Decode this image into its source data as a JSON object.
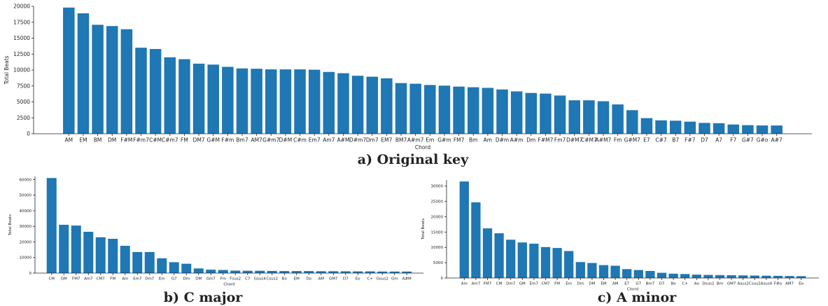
{
  "chart_data": [
    {
      "type": "bar",
      "caption": "a) Original key",
      "xlabel": "Chord",
      "ylabel": "Total Beats",
      "ylim": [
        0,
        20000
      ],
      "yticks": [
        0,
        2500,
        5000,
        7500,
        10000,
        12500,
        15000,
        17500,
        20000
      ],
      "color": "#1f77b4",
      "categories": [
        "AM",
        "EM",
        "BM",
        "DM",
        "F#M",
        "F#m7",
        "C#M",
        "C#m7",
        "FM",
        "DM7",
        "G#M",
        "F#m",
        "Bm7",
        "AM7",
        "G#m7",
        "D#M",
        "C#m",
        "Em7",
        "Am7",
        "A#M",
        "D#m7",
        "Dm7",
        "EM7",
        "BM7",
        "A#m7",
        "Em",
        "G#m",
        "FM7",
        "Bm",
        "Am",
        "D#m",
        "A#m",
        "Dm",
        "F#M7",
        "Fm7",
        "D#M7",
        "C#M7",
        "A#M7",
        "Fm",
        "G#M7",
        "E7",
        "C#7",
        "B7",
        "F#7",
        "D7",
        "A7",
        "F7",
        "G#7",
        "G#o",
        "A#7"
      ],
      "values": [
        19800,
        18900,
        17100,
        16900,
        16400,
        13500,
        13300,
        12000,
        11700,
        11000,
        10850,
        10500,
        10250,
        10200,
        10100,
        10100,
        10100,
        10050,
        9700,
        9500,
        9100,
        8950,
        8700,
        7950,
        7850,
        7650,
        7550,
        7400,
        7300,
        7200,
        6950,
        6650,
        6400,
        6300,
        6000,
        5250,
        5250,
        5100,
        4600,
        3700,
        2450,
        2100,
        2050,
        1900,
        1700,
        1650,
        1450,
        1350,
        1300,
        1300
      ]
    },
    {
      "type": "bar",
      "caption": "b) C major",
      "xlabel": "Chord",
      "ylabel": "Total Beats",
      "ylim": [
        0,
        62000
      ],
      "yticks": [
        0,
        10000,
        20000,
        30000,
        40000,
        50000,
        60000
      ],
      "color": "#1f77b4",
      "categories": [
        "CM",
        "GM",
        "FM7",
        "Am7",
        "CM7",
        "FM",
        "Am",
        "Em7",
        "Dm7",
        "Em",
        "G7",
        "Dm",
        "DM",
        "Gm7",
        "Fm",
        "Fsus2",
        "C7",
        "Gsus4",
        "Csus2",
        "Bo",
        "EM",
        "Do",
        "AM",
        "GM7",
        "D7",
        "Eo",
        "C+",
        "Gsus2",
        "Gm",
        "A#M"
      ],
      "values": [
        61000,
        31000,
        30500,
        26500,
        23000,
        22000,
        17500,
        13500,
        13500,
        9500,
        7000,
        6000,
        3000,
        2200,
        2000,
        1600,
        1500,
        1500,
        1400,
        1300,
        1300,
        1300,
        1200,
        1200,
        1150,
        1100,
        1100,
        1000,
        1000,
        1000
      ]
    },
    {
      "type": "bar",
      "caption": "c) A minor",
      "xlabel": "Chord",
      "ylabel": "Total Beats",
      "ylim": [
        0,
        32000
      ],
      "yticks": [
        0,
        5000,
        10000,
        15000,
        20000,
        25000,
        30000
      ],
      "color": "#1f77b4",
      "categories": [
        "Am",
        "Am7",
        "FM7",
        "CM",
        "Dm7",
        "GM",
        "Em7",
        "CM7",
        "FM",
        "Em",
        "Dm",
        "DM",
        "EM",
        "AM",
        "E7",
        "G7",
        "Bm7",
        "D7",
        "Bo",
        "C+",
        "Ao",
        "Dsus2",
        "Bm",
        "GM7",
        "Asus2",
        "Csus2",
        "Asus4",
        "F#o",
        "AM7",
        "Eo"
      ],
      "values": [
        31500,
        24700,
        16200,
        14600,
        12500,
        11600,
        11200,
        10100,
        9800,
        8800,
        5200,
        4900,
        4200,
        4000,
        2900,
        2600,
        2300,
        1700,
        1400,
        1300,
        1100,
        1000,
        950,
        900,
        850,
        800,
        750,
        700,
        650,
        600
      ]
    }
  ]
}
